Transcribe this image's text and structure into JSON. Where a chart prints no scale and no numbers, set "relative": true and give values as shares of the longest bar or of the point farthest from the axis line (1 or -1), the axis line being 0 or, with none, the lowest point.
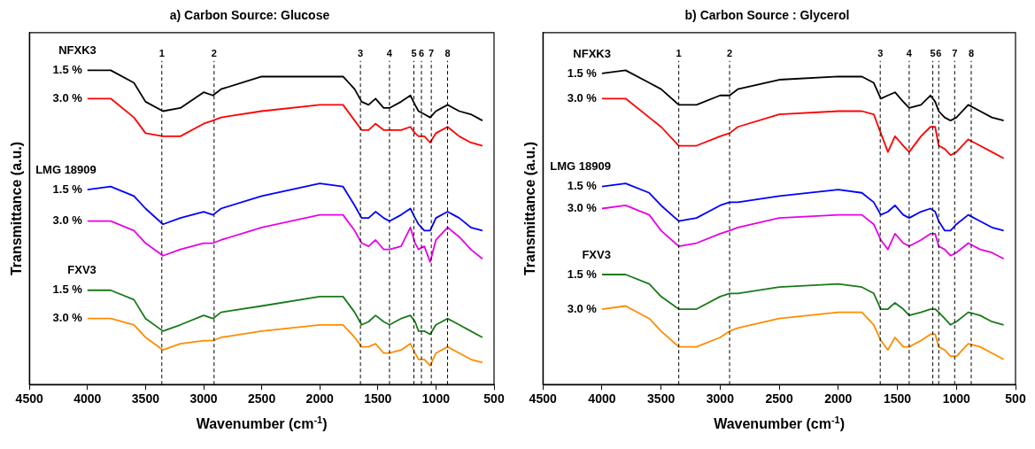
{
  "chart_data": [
    {
      "type": "line",
      "title": "a) Carbon Source: Glucose",
      "xlabel": "Wavenumber (cm$^{-1}$)",
      "ylabel": "Transmittance (a.u.)",
      "relative": true,
      "grid": false,
      "xlim": [
        4500,
        500
      ],
      "xticks": [
        4500,
        4000,
        3500,
        3000,
        2500,
        2000,
        1500,
        1000,
        500
      ],
      "x": [
        4000,
        3800,
        3600,
        3500,
        3350,
        3200,
        3000,
        2920,
        2850,
        2500,
        2000,
        1800,
        1700,
        1640,
        1580,
        1520,
        1450,
        1400,
        1300,
        1220,
        1180,
        1150,
        1100,
        1050,
        1000,
        900,
        800,
        700,
        600
      ],
      "series": [
        {
          "name": "1.5 %",
          "color": "#000000",
          "values": [
            1.0,
            1.0,
            0.96,
            0.9,
            0.87,
            0.88,
            0.93,
            0.92,
            0.94,
            0.98,
            0.98,
            0.98,
            0.94,
            0.9,
            0.89,
            0.91,
            0.88,
            0.88,
            0.9,
            0.92,
            0.89,
            0.87,
            0.86,
            0.85,
            0.87,
            0.89,
            0.87,
            0.86,
            0.84
          ]
        },
        {
          "name": "3.0 %",
          "color": "#ff0000",
          "values": [
            0.91,
            0.91,
            0.85,
            0.8,
            0.79,
            0.79,
            0.83,
            0.84,
            0.85,
            0.87,
            0.89,
            0.89,
            0.84,
            0.81,
            0.81,
            0.83,
            0.81,
            0.81,
            0.81,
            0.82,
            0.8,
            0.79,
            0.79,
            0.77,
            0.8,
            0.82,
            0.79,
            0.77,
            0.76
          ]
        },
        {
          "name": "1.5 %",
          "color": "#0000ff",
          "values": [
            0.62,
            0.63,
            0.6,
            0.56,
            0.51,
            0.53,
            0.55,
            0.54,
            0.56,
            0.6,
            0.64,
            0.63,
            0.57,
            0.53,
            0.53,
            0.55,
            0.53,
            0.52,
            0.54,
            0.56,
            0.53,
            0.51,
            0.49,
            0.49,
            0.53,
            0.55,
            0.53,
            0.5,
            0.49
          ]
        },
        {
          "name": "3.0 %",
          "color": "#e600e6",
          "values": [
            0.52,
            0.52,
            0.49,
            0.45,
            0.41,
            0.43,
            0.45,
            0.45,
            0.46,
            0.5,
            0.54,
            0.54,
            0.49,
            0.45,
            0.44,
            0.46,
            0.43,
            0.43,
            0.44,
            0.5,
            0.45,
            0.43,
            0.44,
            0.39,
            0.46,
            0.5,
            0.47,
            0.43,
            0.4
          ]
        },
        {
          "name": "1.5 %",
          "color": "#1a7a1a",
          "values": [
            0.3,
            0.3,
            0.27,
            0.21,
            0.17,
            0.19,
            0.22,
            0.21,
            0.23,
            0.25,
            0.28,
            0.28,
            0.23,
            0.19,
            0.2,
            0.22,
            0.2,
            0.19,
            0.21,
            0.22,
            0.2,
            0.17,
            0.17,
            0.16,
            0.19,
            0.21,
            0.19,
            0.17,
            0.15
          ]
        },
        {
          "name": "3.0 %",
          "color": "#ff8c00",
          "values": [
            0.21,
            0.21,
            0.19,
            0.15,
            0.11,
            0.13,
            0.14,
            0.14,
            0.15,
            0.17,
            0.19,
            0.19,
            0.15,
            0.12,
            0.12,
            0.13,
            0.1,
            0.1,
            0.11,
            0.13,
            0.1,
            0.08,
            0.08,
            0.06,
            0.1,
            0.12,
            0.1,
            0.08,
            0.07
          ]
        }
      ],
      "ref_lines": [
        {
          "axis": "x",
          "value": 3360,
          "line_style": "dashed"
        },
        {
          "axis": "x",
          "value": 2910,
          "line_style": "dashed"
        },
        {
          "axis": "x",
          "value": 1650,
          "line_style": "dashed"
        },
        {
          "axis": "x",
          "value": 1400,
          "line_style": "dashed"
        },
        {
          "axis": "x",
          "value": 1190,
          "line_style": "dashed"
        },
        {
          "axis": "x",
          "value": 1125,
          "line_style": "dashed"
        },
        {
          "axis": "x",
          "value": 1040,
          "line_style": "dashed"
        },
        {
          "axis": "x",
          "value": 900,
          "line_style": "dashed"
        }
      ],
      "annotations": [
        "NFXK3",
        "LMG 18909",
        "FXV3",
        {
          "text": "1",
          "x": 3360,
          "y": 1.03
        },
        {
          "text": "2",
          "x": 2910,
          "y": 1.03
        },
        {
          "text": "3",
          "x": 1650,
          "y": 1.03
        },
        {
          "text": "4",
          "x": 1400,
          "y": 1.03
        },
        {
          "text": "5",
          "x": 1190,
          "y": 1.03
        },
        {
          "text": "6",
          "x": 1125,
          "y": 1.03
        },
        {
          "text": "7",
          "x": 1040,
          "y": 1.03
        },
        {
          "text": "8",
          "x": 900,
          "y": 1.03
        }
      ]
    },
    {
      "type": "line",
      "title": "b) Carbon Source : Glycerol",
      "xlabel": "Wavenumber (cm$^{-1}$)",
      "ylabel": "Transmittance (a.u.)",
      "relative": true,
      "grid": false,
      "xlim": [
        4500,
        500
      ],
      "xticks": [
        4500,
        4000,
        3500,
        3000,
        2500,
        2000,
        1500,
        1000,
        500
      ],
      "x": [
        4000,
        3800,
        3600,
        3500,
        3350,
        3200,
        3000,
        2920,
        2850,
        2500,
        2000,
        1800,
        1700,
        1640,
        1580,
        1520,
        1450,
        1400,
        1300,
        1220,
        1180,
        1150,
        1100,
        1050,
        1000,
        900,
        800,
        700,
        600
      ],
      "series": [
        {
          "name": "1.5 %",
          "color": "#000000",
          "values": [
            0.99,
            1.0,
            0.96,
            0.94,
            0.89,
            0.89,
            0.92,
            0.92,
            0.94,
            0.97,
            0.98,
            0.98,
            0.96,
            0.91,
            0.92,
            0.93,
            0.9,
            0.88,
            0.89,
            0.92,
            0.9,
            0.87,
            0.85,
            0.84,
            0.85,
            0.89,
            0.87,
            0.85,
            0.84
          ]
        },
        {
          "name": "3.0 %",
          "color": "#ff0000",
          "values": [
            0.91,
            0.91,
            0.85,
            0.82,
            0.76,
            0.76,
            0.79,
            0.8,
            0.82,
            0.86,
            0.87,
            0.87,
            0.86,
            0.8,
            0.74,
            0.79,
            0.76,
            0.74,
            0.79,
            0.82,
            0.82,
            0.76,
            0.75,
            0.73,
            0.74,
            0.78,
            0.76,
            0.74,
            0.72
          ]
        },
        {
          "name": "1.5 %",
          "color": "#0000ff",
          "values": [
            0.63,
            0.64,
            0.61,
            0.57,
            0.52,
            0.53,
            0.57,
            0.58,
            0.58,
            0.6,
            0.62,
            0.61,
            0.58,
            0.54,
            0.55,
            0.57,
            0.54,
            0.53,
            0.55,
            0.56,
            0.55,
            0.52,
            0.49,
            0.49,
            0.51,
            0.54,
            0.52,
            0.5,
            0.49
          ]
        },
        {
          "name": "3.0 %",
          "color": "#e600e6",
          "values": [
            0.56,
            0.57,
            0.54,
            0.49,
            0.44,
            0.45,
            0.48,
            0.49,
            0.5,
            0.53,
            0.54,
            0.54,
            0.51,
            0.46,
            0.43,
            0.48,
            0.45,
            0.44,
            0.46,
            0.48,
            0.48,
            0.44,
            0.43,
            0.41,
            0.42,
            0.45,
            0.43,
            0.42,
            0.4
          ]
        },
        {
          "name": "1.5 %",
          "color": "#1a7a1a",
          "values": [
            0.35,
            0.35,
            0.32,
            0.28,
            0.24,
            0.24,
            0.28,
            0.29,
            0.29,
            0.31,
            0.32,
            0.31,
            0.29,
            0.24,
            0.24,
            0.26,
            0.24,
            0.22,
            0.23,
            0.24,
            0.24,
            0.23,
            0.21,
            0.19,
            0.2,
            0.23,
            0.22,
            0.2,
            0.19
          ]
        },
        {
          "name": "3.0 %",
          "color": "#ff8c00",
          "values": [
            0.24,
            0.25,
            0.21,
            0.17,
            0.12,
            0.12,
            0.15,
            0.17,
            0.18,
            0.21,
            0.23,
            0.23,
            0.19,
            0.14,
            0.11,
            0.15,
            0.12,
            0.12,
            0.14,
            0.16,
            0.16,
            0.12,
            0.11,
            0.09,
            0.09,
            0.13,
            0.12,
            0.1,
            0.08
          ]
        }
      ],
      "ref_lines": [
        {
          "axis": "x",
          "value": 3350,
          "line_style": "dashed"
        },
        {
          "axis": "x",
          "value": 2920,
          "line_style": "dashed"
        },
        {
          "axis": "x",
          "value": 1645,
          "line_style": "dashed"
        },
        {
          "axis": "x",
          "value": 1400,
          "line_style": "dashed"
        },
        {
          "axis": "x",
          "value": 1200,
          "line_style": "dashed"
        },
        {
          "axis": "x",
          "value": 1150,
          "line_style": "dashed"
        },
        {
          "axis": "x",
          "value": 1015,
          "line_style": "dashed"
        },
        {
          "axis": "x",
          "value": 875,
          "line_style": "dashed"
        }
      ],
      "annotations": [
        "NFXK3",
        "LMG 18909",
        "FXV3",
        {
          "text": "1",
          "x": 3350,
          "y": 1.03
        },
        {
          "text": "2",
          "x": 2920,
          "y": 1.03
        },
        {
          "text": "3",
          "x": 1645,
          "y": 1.03
        },
        {
          "text": "4",
          "x": 1400,
          "y": 1.03
        },
        {
          "text": "5",
          "x": 1200,
          "y": 1.03
        },
        {
          "text": "6",
          "x": 1150,
          "y": 1.03
        },
        {
          "text": "7",
          "x": 1015,
          "y": 1.03
        },
        {
          "text": "8",
          "x": 875,
          "y": 1.03
        }
      ]
    }
  ]
}
